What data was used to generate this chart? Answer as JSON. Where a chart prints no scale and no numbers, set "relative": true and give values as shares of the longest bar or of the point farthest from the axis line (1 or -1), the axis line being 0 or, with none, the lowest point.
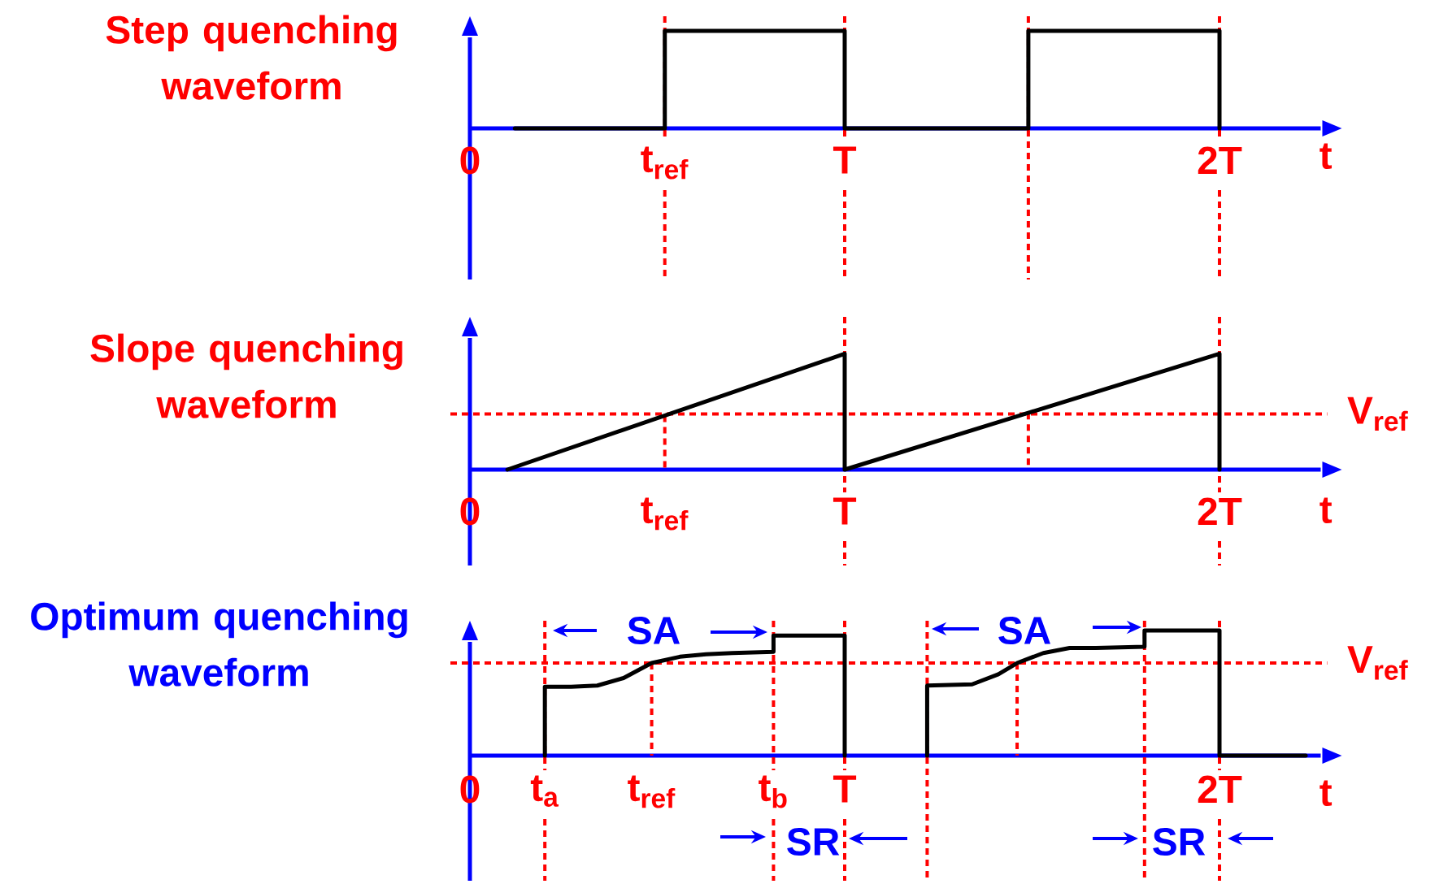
{
  "chart_data": [
    {
      "type": "line",
      "title": "Step quenching waveform",
      "xlabel": "t",
      "relative": true,
      "xlim": [
        0,
        2.27
      ],
      "xticks": [
        0,
        {
          "value": 0.52,
          "label": "t$_{ref}$"
        },
        {
          "value": 1,
          "label": "T"
        },
        {
          "value": 2,
          "label": "2T"
        }
      ],
      "x": [
        0.12,
        0.52,
        0.52,
        1,
        1,
        1.49,
        1.49,
        2,
        2
      ],
      "series": [
        {
          "color": "#000000",
          "values": [
            0,
            0,
            1,
            1,
            0,
            0,
            1,
            1,
            0
          ]
        }
      ],
      "ref_lines": [
        {
          "axis": "x",
          "value": 0.52,
          "color": "#ff0000",
          "line_style": "dashed"
        },
        {
          "axis": "x",
          "value": 1,
          "color": "#ff0000",
          "line_style": "dashed"
        },
        {
          "axis": "x",
          "value": 1.49,
          "color": "#ff0000",
          "line_style": "dashed"
        },
        {
          "axis": "x",
          "value": 2,
          "color": "#ff0000",
          "line_style": "dashed"
        }
      ]
    },
    {
      "type": "line",
      "title": "Slope quenching waveform",
      "xlabel": "t",
      "relative": true,
      "xlim": [
        0,
        2.27
      ],
      "xticks": [
        0,
        {
          "value": 0.52,
          "label": "t$_{ref}$"
        },
        {
          "value": 1,
          "label": "T"
        },
        {
          "value": 2,
          "label": "2T"
        }
      ],
      "x": [
        0.1,
        1,
        1,
        2,
        2
      ],
      "series": [
        {
          "color": "#000000",
          "values": [
            0,
            1,
            0,
            1,
            0
          ]
        }
      ],
      "ref_lines": [
        {
          "axis": "y",
          "value": 0.48,
          "label": "V$_{ref}$",
          "color": "#ff0000",
          "line_style": "dashed"
        },
        {
          "axis": "x",
          "value": 0.52,
          "color": "#ff0000",
          "line_style": "dashed"
        },
        {
          "axis": "x",
          "value": 1,
          "color": "#ff0000",
          "line_style": "dashed"
        },
        {
          "axis": "x",
          "value": 1.49,
          "color": "#ff0000",
          "line_style": "dashed"
        },
        {
          "axis": "x",
          "value": 2,
          "color": "#ff0000",
          "line_style": "dashed"
        }
      ]
    },
    {
      "type": "line",
      "title": "Optimum quenching waveform",
      "xlabel": "t",
      "relative": true,
      "xlim": [
        0,
        2.27
      ],
      "xticks": [
        0,
        {
          "value": 0.2,
          "label": "t$_{a}$"
        },
        {
          "value": 0.485,
          "label": "t$_{ref}$"
        },
        {
          "value": 0.81,
          "label": "t$_{b}$"
        },
        {
          "value": 1,
          "label": "T"
        },
        {
          "value": 2,
          "label": "2T"
        }
      ],
      "x": [
        0.2,
        0.2,
        0.27,
        0.34,
        0.41,
        0.485,
        0.56,
        0.63,
        0.7,
        0.81,
        0.81,
        1,
        1,
        1.1,
        1.22,
        1.22,
        1.34,
        1.41,
        1.46,
        1.53,
        1.6,
        1.67,
        1.8,
        1.8,
        2,
        2,
        2.23
      ],
      "series": [
        {
          "color": "#000000",
          "values": [
            0,
            0.55,
            0.55,
            0.56,
            0.62,
            0.74,
            0.79,
            0.81,
            0.82,
            0.83,
            0.96,
            0.96,
            0,
            null,
            0,
            0.56,
            0.57,
            0.65,
            0.74,
            0.82,
            0.86,
            0.86,
            0.87,
            1,
            1,
            0,
            0
          ]
        }
      ],
      "ref_lines": [
        {
          "axis": "y",
          "value": 0.74,
          "label": "V$_{ref}$",
          "color": "#ff0000",
          "line_style": "dashed"
        },
        {
          "axis": "x",
          "value": 0.2,
          "color": "#ff0000",
          "line_style": "dashed"
        },
        {
          "axis": "x",
          "value": 0.485,
          "color": "#ff0000",
          "line_style": "dashed"
        },
        {
          "axis": "x",
          "value": 0.81,
          "color": "#ff0000",
          "line_style": "dashed"
        },
        {
          "axis": "x",
          "value": 1,
          "color": "#ff0000",
          "line_style": "dashed"
        },
        {
          "axis": "x",
          "value": 1.22,
          "color": "#ff0000",
          "line_style": "dashed"
        },
        {
          "axis": "x",
          "value": 1.46,
          "color": "#ff0000",
          "line_style": "dashed"
        },
        {
          "axis": "x",
          "value": 1.8,
          "color": "#ff0000",
          "line_style": "dashed"
        },
        {
          "axis": "x",
          "value": 2,
          "color": "#ff0000",
          "line_style": "dashed"
        }
      ],
      "annotations": [
        "SA",
        "SA",
        "SR",
        "SR"
      ]
    }
  ]
}
